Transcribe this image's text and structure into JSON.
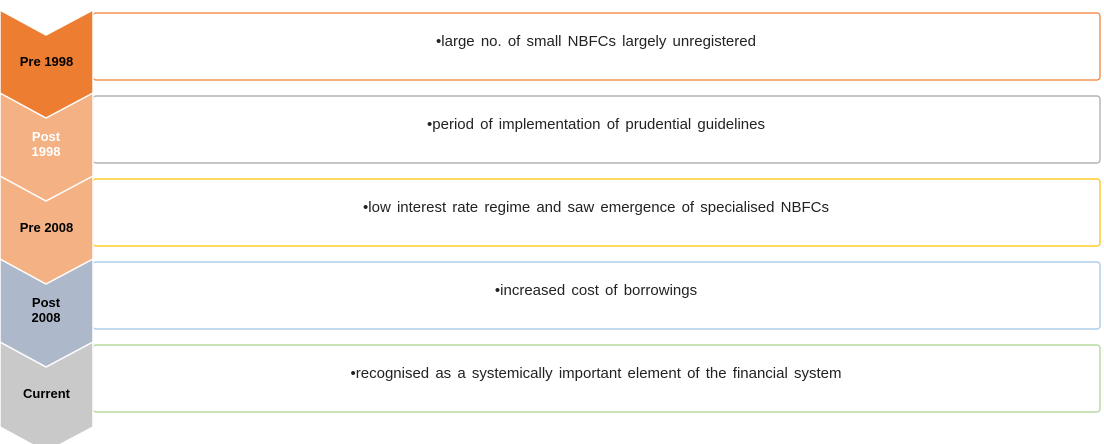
{
  "rows": [
    {
      "label": "Pre 1998",
      "text": "•large no. of small NBFCs largely unregistered"
    },
    {
      "label": "Post 1998",
      "text": "•period of implementation of prudential guidelines"
    },
    {
      "label": "Pre 2008",
      "text": "•low interest rate regime and saw emergence of specialised NBFCs"
    },
    {
      "label": "Post 2008",
      "text": "•increased cost of borrowings"
    },
    {
      "label": "Current",
      "text": "•recognised as a systemically important element of the financial system"
    }
  ]
}
